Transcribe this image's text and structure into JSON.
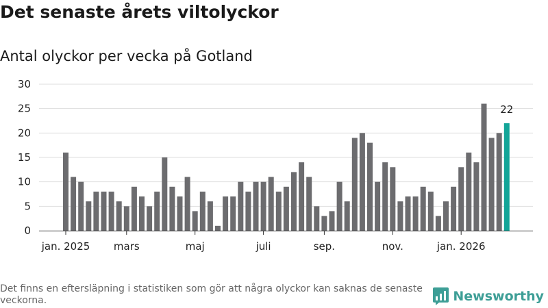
{
  "header": {
    "title": "Det senaste årets viltolyckor",
    "subtitle": "Antal olyckor per vecka på Gotland"
  },
  "footer": {
    "note": "Det finns en eftersläpning i statistiken som gör att några olyckor kan saknas de senaste veckorna.",
    "brand": "Newsworthy"
  },
  "colors": {
    "bar": "#6c6c6f",
    "highlight": "#13a598",
    "grid": "#dddddd",
    "axis": "#333333",
    "brand": "#3d9e96"
  },
  "chart_data": {
    "type": "bar",
    "title": "Antal olyckor per vecka på Gotland",
    "xlabel": "",
    "ylabel": "",
    "ylim": [
      0,
      30
    ],
    "yticks": [
      0,
      5,
      10,
      15,
      20,
      25,
      30
    ],
    "grid": true,
    "values": [
      16,
      11,
      10,
      6,
      8,
      8,
      8,
      6,
      5,
      9,
      7,
      5,
      8,
      15,
      9,
      7,
      11,
      4,
      8,
      6,
      1,
      7,
      7,
      10,
      8,
      10,
      10,
      11,
      8,
      9,
      12,
      14,
      11,
      5,
      3,
      4,
      10,
      6,
      19,
      20,
      18,
      10,
      14,
      13,
      6,
      7,
      7,
      9,
      8,
      3,
      6,
      9,
      13,
      16,
      14,
      26,
      19,
      20,
      22
    ],
    "x_ticks": [
      {
        "index": 0,
        "label": "jan. 2025"
      },
      {
        "index": 8,
        "label": "mars"
      },
      {
        "index": 17,
        "label": "maj"
      },
      {
        "index": 26,
        "label": "juli"
      },
      {
        "index": 34,
        "label": "sep."
      },
      {
        "index": 43,
        "label": "nov."
      },
      {
        "index": 52,
        "label": "jan. 2026"
      }
    ],
    "highlight_index": 58,
    "highlight_label": "22"
  }
}
